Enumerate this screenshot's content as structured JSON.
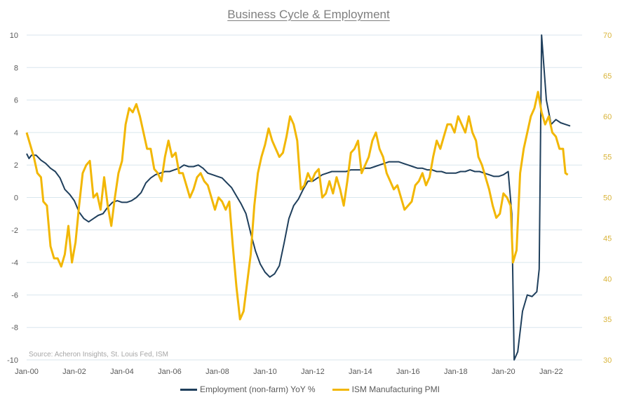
{
  "chart_data": {
    "type": "line",
    "title": "Business Cycle & Employment",
    "source": "Source: Acheron Insights, St. Louis Fed, ISM",
    "x_ticks": [
      "Jan-00",
      "Jan-02",
      "Jan-04",
      "Jan-06",
      "Jan-08",
      "Jan-10",
      "Jan-12",
      "Jan-14",
      "Jan-16",
      "Jan-18",
      "Jan-20",
      "Jan-22"
    ],
    "left_axis": {
      "ylim": [
        -10,
        10
      ],
      "ticks": [
        "10",
        "8",
        "6",
        "4",
        "2",
        "0",
        "-2",
        "-4",
        "-6",
        "-8",
        "-10"
      ]
    },
    "right_axis": {
      "ylim": [
        30,
        70
      ],
      "ticks": [
        "70",
        "65",
        "60",
        "55",
        "50",
        "45",
        "40",
        "35",
        "30"
      ]
    },
    "grid": true,
    "legend_position": "bottom",
    "colors": {
      "employment": "#1f3f5c",
      "pmi": "#f2b705",
      "grid": "#d9e6ee",
      "axis_text": "#595959",
      "right_tick_text": "#d9b43a"
    },
    "series": [
      {
        "name": "Employment (non-farm) YoY %",
        "axis": "left",
        "points": [
          [
            2000.0,
            2.7
          ],
          [
            2000.1,
            2.4
          ],
          [
            2000.2,
            2.6
          ],
          [
            2000.4,
            2.6
          ],
          [
            2000.6,
            2.3
          ],
          [
            2000.8,
            2.1
          ],
          [
            2001.0,
            1.8
          ],
          [
            2001.2,
            1.6
          ],
          [
            2001.4,
            1.2
          ],
          [
            2001.6,
            0.5
          ],
          [
            2001.8,
            0.2
          ],
          [
            2002.0,
            -0.2
          ],
          [
            2002.2,
            -0.9
          ],
          [
            2002.4,
            -1.3
          ],
          [
            2002.6,
            -1.5
          ],
          [
            2002.8,
            -1.3
          ],
          [
            2003.0,
            -1.1
          ],
          [
            2003.2,
            -1.0
          ],
          [
            2003.4,
            -0.6
          ],
          [
            2003.6,
            -0.3
          ],
          [
            2003.8,
            -0.2
          ],
          [
            2004.0,
            -0.3
          ],
          [
            2004.2,
            -0.3
          ],
          [
            2004.4,
            -0.2
          ],
          [
            2004.6,
            0.0
          ],
          [
            2004.8,
            0.3
          ],
          [
            2005.0,
            0.9
          ],
          [
            2005.2,
            1.2
          ],
          [
            2005.4,
            1.4
          ],
          [
            2005.6,
            1.5
          ],
          [
            2005.8,
            1.6
          ],
          [
            2006.0,
            1.6
          ],
          [
            2006.2,
            1.7
          ],
          [
            2006.4,
            1.8
          ],
          [
            2006.6,
            2.0
          ],
          [
            2006.8,
            1.9
          ],
          [
            2007.0,
            1.9
          ],
          [
            2007.2,
            2.0
          ],
          [
            2007.4,
            1.8
          ],
          [
            2007.6,
            1.5
          ],
          [
            2007.8,
            1.4
          ],
          [
            2008.0,
            1.3
          ],
          [
            2008.2,
            1.2
          ],
          [
            2008.4,
            0.9
          ],
          [
            2008.6,
            0.6
          ],
          [
            2008.8,
            0.1
          ],
          [
            2009.0,
            -0.4
          ],
          [
            2009.2,
            -1.0
          ],
          [
            2009.4,
            -2.2
          ],
          [
            2009.6,
            -3.3
          ],
          [
            2009.8,
            -4.1
          ],
          [
            2010.0,
            -4.6
          ],
          [
            2010.2,
            -4.9
          ],
          [
            2010.4,
            -4.7
          ],
          [
            2010.6,
            -4.2
          ],
          [
            2010.8,
            -2.8
          ],
          [
            2011.0,
            -1.3
          ],
          [
            2011.2,
            -0.5
          ],
          [
            2011.4,
            -0.1
          ],
          [
            2011.6,
            0.5
          ],
          [
            2011.8,
            1.0
          ],
          [
            2012.0,
            1.0
          ],
          [
            2012.2,
            1.2
          ],
          [
            2012.4,
            1.4
          ],
          [
            2012.6,
            1.5
          ],
          [
            2012.8,
            1.6
          ],
          [
            2013.0,
            1.6
          ],
          [
            2013.2,
            1.6
          ],
          [
            2013.4,
            1.6
          ],
          [
            2013.6,
            1.7
          ],
          [
            2013.8,
            1.7
          ],
          [
            2014.0,
            1.7
          ],
          [
            2014.2,
            1.8
          ],
          [
            2014.4,
            1.8
          ],
          [
            2014.6,
            1.9
          ],
          [
            2014.8,
            2.0
          ],
          [
            2015.0,
            2.1
          ],
          [
            2015.2,
            2.2
          ],
          [
            2015.4,
            2.2
          ],
          [
            2015.6,
            2.2
          ],
          [
            2015.8,
            2.1
          ],
          [
            2016.0,
            2.0
          ],
          [
            2016.2,
            1.9
          ],
          [
            2016.4,
            1.8
          ],
          [
            2016.6,
            1.8
          ],
          [
            2016.8,
            1.7
          ],
          [
            2017.0,
            1.7
          ],
          [
            2017.2,
            1.6
          ],
          [
            2017.4,
            1.6
          ],
          [
            2017.6,
            1.5
          ],
          [
            2017.8,
            1.5
          ],
          [
            2018.0,
            1.5
          ],
          [
            2018.2,
            1.6
          ],
          [
            2018.4,
            1.6
          ],
          [
            2018.6,
            1.7
          ],
          [
            2018.8,
            1.6
          ],
          [
            2019.0,
            1.6
          ],
          [
            2019.2,
            1.5
          ],
          [
            2019.4,
            1.4
          ],
          [
            2019.6,
            1.3
          ],
          [
            2019.8,
            1.3
          ],
          [
            2020.0,
            1.4
          ],
          [
            2020.2,
            1.6
          ],
          [
            2020.35,
            -1.0
          ],
          [
            2020.45,
            -10.0
          ],
          [
            2020.6,
            -9.5
          ],
          [
            2020.8,
            -7.0
          ],
          [
            2021.0,
            -6.0
          ],
          [
            2021.2,
            -6.1
          ],
          [
            2021.4,
            -5.8
          ],
          [
            2021.5,
            -4.4
          ],
          [
            2021.6,
            10.0
          ],
          [
            2021.8,
            6.0
          ],
          [
            2022.0,
            4.5
          ],
          [
            2022.2,
            4.8
          ],
          [
            2022.4,
            4.6
          ],
          [
            2022.6,
            4.5
          ],
          [
            2022.8,
            4.4
          ]
        ]
      },
      {
        "name": "ISM Manufacturing PMI",
        "axis": "right",
        "points": [
          [
            2000.0,
            58
          ],
          [
            2000.15,
            56.5
          ],
          [
            2000.3,
            55
          ],
          [
            2000.45,
            53
          ],
          [
            2000.6,
            52.5
          ],
          [
            2000.7,
            49.5
          ],
          [
            2000.85,
            49
          ],
          [
            2001.0,
            44
          ],
          [
            2001.15,
            42.5
          ],
          [
            2001.3,
            42.5
          ],
          [
            2001.45,
            41.5
          ],
          [
            2001.6,
            43
          ],
          [
            2001.75,
            46.5
          ],
          [
            2001.9,
            42
          ],
          [
            2002.05,
            44.5
          ],
          [
            2002.2,
            49
          ],
          [
            2002.35,
            53
          ],
          [
            2002.5,
            54
          ],
          [
            2002.65,
            54.5
          ],
          [
            2002.8,
            50
          ],
          [
            2002.95,
            50.5
          ],
          [
            2003.1,
            48.5
          ],
          [
            2003.25,
            52.5
          ],
          [
            2003.4,
            49
          ],
          [
            2003.55,
            46.5
          ],
          [
            2003.7,
            50
          ],
          [
            2003.85,
            53
          ],
          [
            2004.0,
            54.5
          ],
          [
            2004.15,
            59
          ],
          [
            2004.3,
            61
          ],
          [
            2004.45,
            60.5
          ],
          [
            2004.6,
            61.5
          ],
          [
            2004.75,
            60
          ],
          [
            2004.9,
            58
          ],
          [
            2005.05,
            56
          ],
          [
            2005.2,
            56
          ],
          [
            2005.35,
            53.5
          ],
          [
            2005.5,
            53
          ],
          [
            2005.65,
            52
          ],
          [
            2005.8,
            55
          ],
          [
            2005.95,
            57
          ],
          [
            2006.1,
            55
          ],
          [
            2006.25,
            55.5
          ],
          [
            2006.4,
            53
          ],
          [
            2006.55,
            53
          ],
          [
            2006.7,
            51.5
          ],
          [
            2006.85,
            50
          ],
          [
            2007.0,
            51
          ],
          [
            2007.15,
            52.5
          ],
          [
            2007.3,
            53
          ],
          [
            2007.45,
            52
          ],
          [
            2007.6,
            51.5
          ],
          [
            2007.75,
            50
          ],
          [
            2007.9,
            48.5
          ],
          [
            2008.05,
            50
          ],
          [
            2008.2,
            49.5
          ],
          [
            2008.35,
            48.5
          ],
          [
            2008.5,
            49.5
          ],
          [
            2008.65,
            44
          ],
          [
            2008.8,
            39
          ],
          [
            2008.95,
            35
          ],
          [
            2009.1,
            36
          ],
          [
            2009.25,
            39.5
          ],
          [
            2009.4,
            43
          ],
          [
            2009.55,
            49
          ],
          [
            2009.7,
            53
          ],
          [
            2009.85,
            55
          ],
          [
            2010.0,
            56.5
          ],
          [
            2010.15,
            58.5
          ],
          [
            2010.3,
            57
          ],
          [
            2010.45,
            56
          ],
          [
            2010.6,
            55
          ],
          [
            2010.75,
            55.5
          ],
          [
            2010.9,
            57.5
          ],
          [
            2011.05,
            60
          ],
          [
            2011.2,
            59
          ],
          [
            2011.35,
            57
          ],
          [
            2011.5,
            51
          ],
          [
            2011.65,
            51.5
          ],
          [
            2011.8,
            53
          ],
          [
            2011.95,
            52
          ],
          [
            2012.1,
            53
          ],
          [
            2012.25,
            53.5
          ],
          [
            2012.4,
            50
          ],
          [
            2012.55,
            50.5
          ],
          [
            2012.7,
            52
          ],
          [
            2012.85,
            50.5
          ],
          [
            2013.0,
            52.5
          ],
          [
            2013.15,
            51
          ],
          [
            2013.3,
            49
          ],
          [
            2013.45,
            52
          ],
          [
            2013.6,
            55.5
          ],
          [
            2013.75,
            56
          ],
          [
            2013.9,
            57
          ],
          [
            2014.05,
            53
          ],
          [
            2014.2,
            54
          ],
          [
            2014.35,
            55
          ],
          [
            2014.5,
            57
          ],
          [
            2014.65,
            58
          ],
          [
            2014.8,
            56
          ],
          [
            2014.95,
            55
          ],
          [
            2015.1,
            53
          ],
          [
            2015.25,
            52
          ],
          [
            2015.4,
            51
          ],
          [
            2015.55,
            51.5
          ],
          [
            2015.7,
            50
          ],
          [
            2015.85,
            48.5
          ],
          [
            2016.0,
            49
          ],
          [
            2016.15,
            49.5
          ],
          [
            2016.3,
            51.5
          ],
          [
            2016.45,
            52
          ],
          [
            2016.6,
            53
          ],
          [
            2016.75,
            51.5
          ],
          [
            2016.9,
            52.5
          ],
          [
            2017.05,
            55
          ],
          [
            2017.2,
            57
          ],
          [
            2017.35,
            56
          ],
          [
            2017.5,
            57.5
          ],
          [
            2017.65,
            59
          ],
          [
            2017.8,
            59
          ],
          [
            2017.95,
            58
          ],
          [
            2018.1,
            60
          ],
          [
            2018.25,
            59
          ],
          [
            2018.4,
            58
          ],
          [
            2018.55,
            60
          ],
          [
            2018.7,
            58
          ],
          [
            2018.85,
            57
          ],
          [
            2018.95,
            55
          ],
          [
            2019.1,
            54
          ],
          [
            2019.25,
            52.5
          ],
          [
            2019.4,
            51
          ],
          [
            2019.55,
            49
          ],
          [
            2019.7,
            47.5
          ],
          [
            2019.85,
            48
          ],
          [
            2020.0,
            50.5
          ],
          [
            2020.15,
            50
          ],
          [
            2020.3,
            49
          ],
          [
            2020.4,
            42
          ],
          [
            2020.55,
            43.5
          ],
          [
            2020.7,
            53
          ],
          [
            2020.85,
            56
          ],
          [
            2021.0,
            58
          ],
          [
            2021.15,
            60
          ],
          [
            2021.3,
            61
          ],
          [
            2021.45,
            63
          ],
          [
            2021.6,
            60.5
          ],
          [
            2021.75,
            59
          ],
          [
            2021.9,
            60
          ],
          [
            2022.05,
            58
          ],
          [
            2022.2,
            57.5
          ],
          [
            2022.35,
            56
          ],
          [
            2022.5,
            56
          ],
          [
            2022.6,
            53
          ],
          [
            2022.7,
            52.8
          ]
        ]
      }
    ]
  }
}
